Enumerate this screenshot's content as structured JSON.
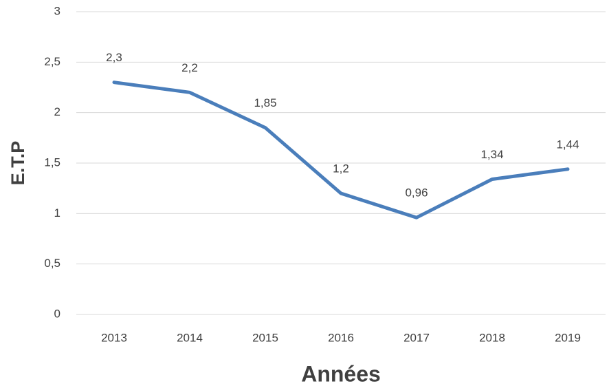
{
  "chart_data": {
    "type": "line",
    "xlabel": "Années",
    "ylabel": "E.T.P",
    "categories": [
      "2013",
      "2014",
      "2015",
      "2016",
      "2017",
      "2018",
      "2019"
    ],
    "series": [
      {
        "name": "E.T.P",
        "color": "#4a7ebb",
        "values": [
          2.3,
          2.2,
          1.85,
          1.2,
          0.96,
          1.34,
          1.44
        ],
        "value_labels": [
          "2,3",
          "2,2",
          "1,85",
          "1,2",
          "0,96",
          "1,34",
          "1,44"
        ]
      }
    ],
    "ylim": [
      0,
      3
    ],
    "yticks": [
      0,
      {
        "value": 0.5,
        "label": "0,5"
      },
      1,
      {
        "value": 1.5,
        "label": "1,5"
      },
      2,
      {
        "value": 2.5,
        "label": "2,5"
      },
      3
    ],
    "grid": true
  }
}
